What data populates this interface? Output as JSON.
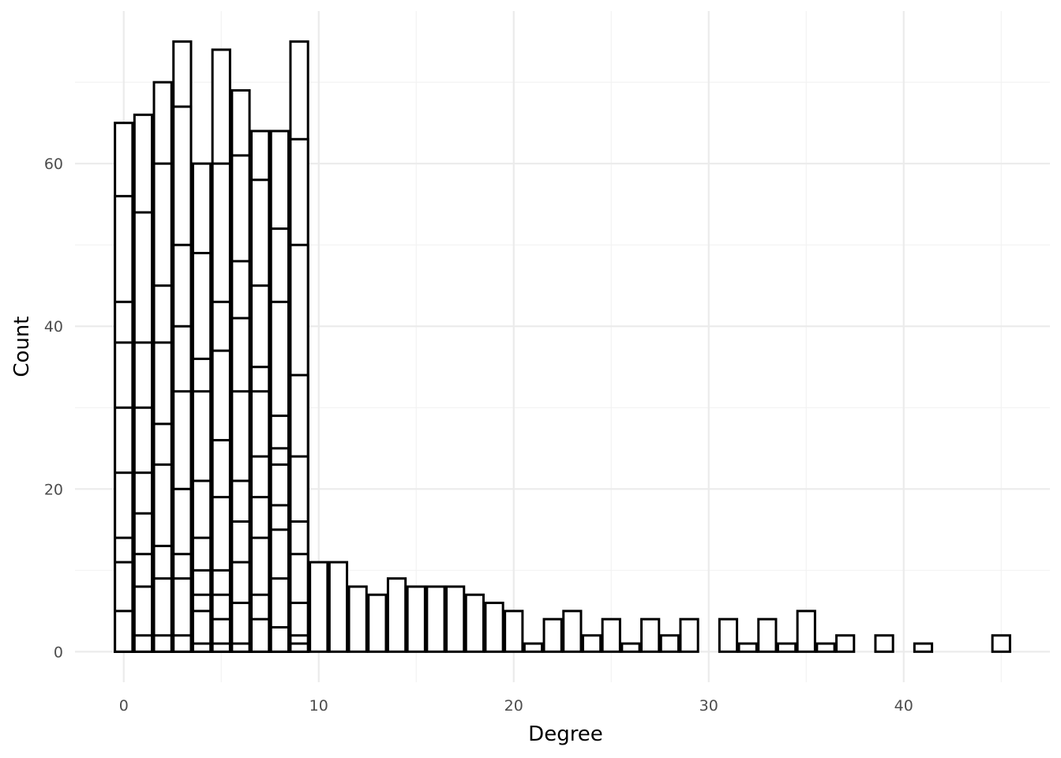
{
  "chart_data": {
    "type": "bar",
    "xlabel": "Degree",
    "ylabel": "Count",
    "xlim": [
      -2.5,
      47.5
    ],
    "ylim": [
      -3.75,
      78.75
    ],
    "x_ticks": [
      0,
      10,
      20,
      30,
      40
    ],
    "y_ticks": [
      0,
      20,
      40,
      60
    ],
    "grid": true,
    "stacked": true,
    "bar_fill": "#ffffff",
    "bar_outline": "#000000",
    "bins": [
      {
        "x": 0,
        "segments": [
          5,
          11,
          14,
          22,
          30,
          38,
          43,
          56,
          65
        ]
      },
      {
        "x": 1,
        "segments": [
          2,
          8,
          12,
          17,
          22,
          30,
          38,
          54,
          66
        ]
      },
      {
        "x": 2,
        "segments": [
          2,
          9,
          13,
          23,
          28,
          38,
          45,
          60,
          70
        ]
      },
      {
        "x": 3,
        "segments": [
          2,
          9,
          12,
          20,
          32,
          40,
          50,
          67,
          75
        ]
      },
      {
        "x": 4,
        "segments": [
          1,
          5,
          7,
          10,
          14,
          21,
          32,
          36,
          49,
          60
        ]
      },
      {
        "x": 5,
        "segments": [
          1,
          4,
          7,
          10,
          19,
          26,
          37,
          43,
          60,
          74
        ]
      },
      {
        "x": 6,
        "segments": [
          1,
          6,
          11,
          16,
          21,
          32,
          41,
          48,
          61,
          69
        ]
      },
      {
        "x": 7,
        "segments": [
          4,
          7,
          14,
          19,
          24,
          32,
          35,
          45,
          58,
          64
        ]
      },
      {
        "x": 8,
        "segments": [
          3,
          9,
          15,
          18,
          23,
          25,
          29,
          43,
          52,
          64
        ]
      },
      {
        "x": 9,
        "segments": [
          1,
          2,
          6,
          12,
          16,
          24,
          34,
          50,
          63,
          75
        ]
      },
      {
        "x": 10,
        "segments": [
          11
        ]
      },
      {
        "x": 11,
        "segments": [
          11
        ]
      },
      {
        "x": 12,
        "segments": [
          8
        ]
      },
      {
        "x": 13,
        "segments": [
          7
        ]
      },
      {
        "x": 14,
        "segments": [
          9
        ]
      },
      {
        "x": 15,
        "segments": [
          8
        ]
      },
      {
        "x": 16,
        "segments": [
          8
        ]
      },
      {
        "x": 17,
        "segments": [
          8
        ]
      },
      {
        "x": 18,
        "segments": [
          7
        ]
      },
      {
        "x": 19,
        "segments": [
          6
        ]
      },
      {
        "x": 20,
        "segments": [
          5
        ]
      },
      {
        "x": 21,
        "segments": [
          1
        ]
      },
      {
        "x": 22,
        "segments": [
          4
        ]
      },
      {
        "x": 23,
        "segments": [
          5
        ]
      },
      {
        "x": 24,
        "segments": [
          2
        ]
      },
      {
        "x": 25,
        "segments": [
          4
        ]
      },
      {
        "x": 26,
        "segments": [
          1
        ]
      },
      {
        "x": 27,
        "segments": [
          4
        ]
      },
      {
        "x": 28,
        "segments": [
          2
        ]
      },
      {
        "x": 29,
        "segments": [
          4
        ]
      },
      {
        "x": 31,
        "segments": [
          4
        ]
      },
      {
        "x": 32,
        "segments": [
          1
        ]
      },
      {
        "x": 33,
        "segments": [
          4
        ]
      },
      {
        "x": 34,
        "segments": [
          1
        ]
      },
      {
        "x": 35,
        "segments": [
          5
        ]
      },
      {
        "x": 36,
        "segments": [
          1
        ]
      },
      {
        "x": 37,
        "segments": [
          2
        ]
      },
      {
        "x": 39,
        "segments": [
          2
        ]
      },
      {
        "x": 41,
        "segments": [
          1
        ]
      },
      {
        "x": 45,
        "segments": [
          2
        ]
      }
    ]
  }
}
